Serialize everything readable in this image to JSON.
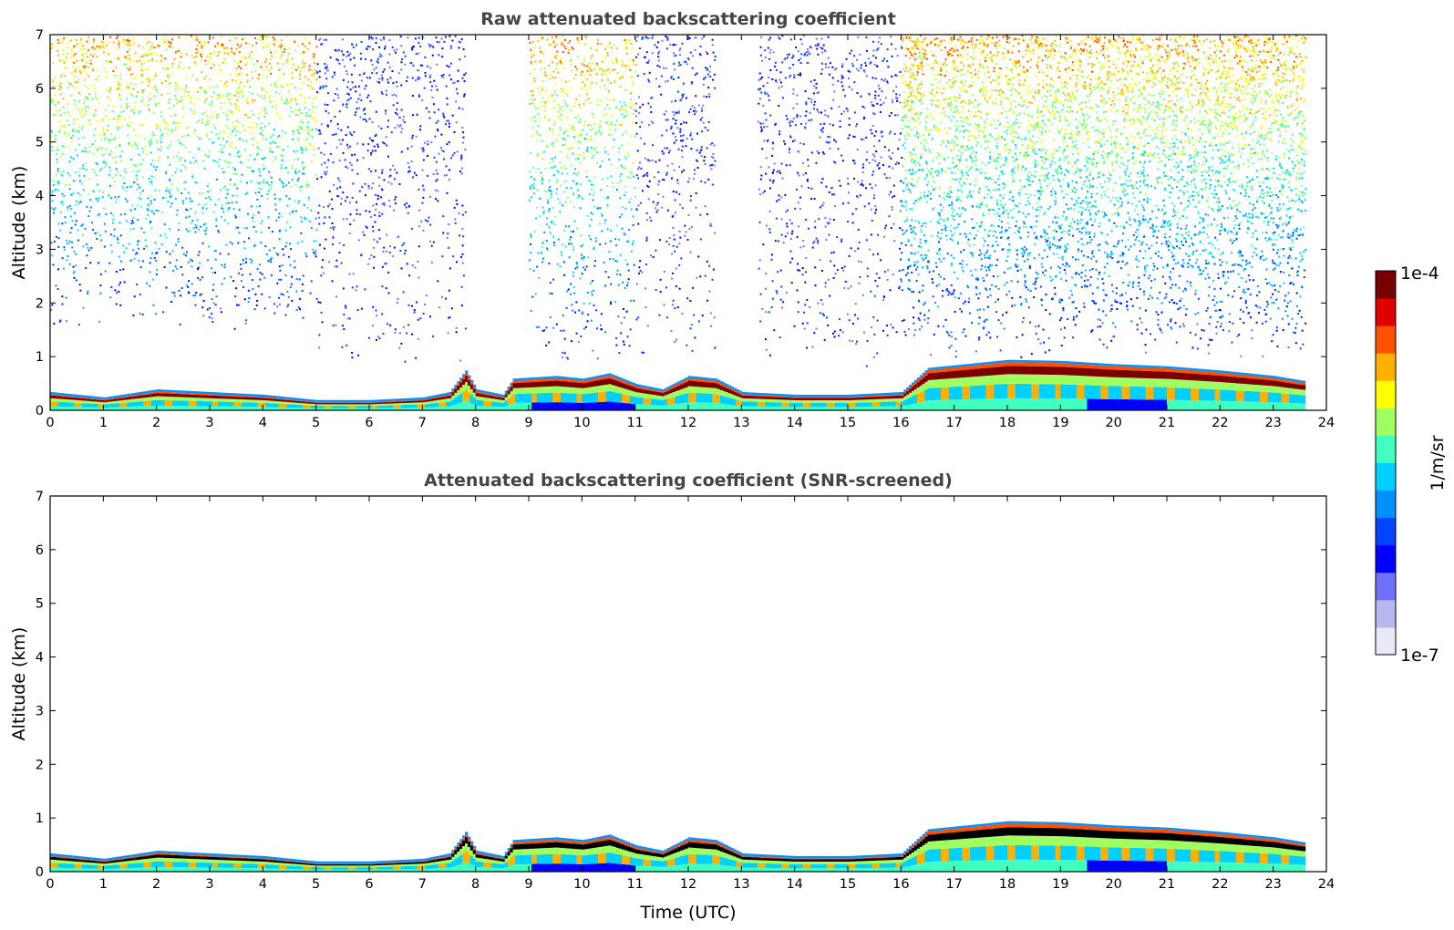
{
  "chart_data": [
    {
      "type": "heatmap",
      "title": "Raw attenuated backscattering coefficient",
      "xlabel": "",
      "ylabel": "Altitude (km)",
      "xlim": [
        0,
        24
      ],
      "ylim": [
        0,
        7
      ],
      "xticks": [
        "0",
        "1",
        "2",
        "3",
        "4",
        "5",
        "6",
        "7",
        "8",
        "9",
        "10",
        "11",
        "12",
        "13",
        "14",
        "15",
        "16",
        "17",
        "18",
        "19",
        "20",
        "21",
        "22",
        "23",
        "24"
      ],
      "yticks": [
        "0",
        "1",
        "2",
        "3",
        "4",
        "5",
        "6",
        "7"
      ],
      "data_end_hour": 23.6,
      "boundary_layer_top_km": [
        [
          0,
          0.3
        ],
        [
          1,
          0.2
        ],
        [
          2,
          0.35
        ],
        [
          3,
          0.3
        ],
        [
          4,
          0.25
        ],
        [
          5,
          0.15
        ],
        [
          6,
          0.15
        ],
        [
          7,
          0.2
        ],
        [
          7.5,
          0.3
        ],
        [
          7.8,
          0.7
        ],
        [
          8,
          0.35
        ],
        [
          8.5,
          0.25
        ],
        [
          8.7,
          0.55
        ],
        [
          9.5,
          0.6
        ],
        [
          10,
          0.55
        ],
        [
          10.5,
          0.65
        ],
        [
          11,
          0.45
        ],
        [
          11.5,
          0.35
        ],
        [
          12,
          0.6
        ],
        [
          12.5,
          0.55
        ],
        [
          13,
          0.3
        ],
        [
          14,
          0.25
        ],
        [
          15,
          0.25
        ],
        [
          16,
          0.3
        ],
        [
          16.5,
          0.75
        ],
        [
          17,
          0.8
        ],
        [
          18,
          0.9
        ],
        [
          19,
          0.88
        ],
        [
          20,
          0.82
        ],
        [
          21,
          0.78
        ],
        [
          22,
          0.7
        ],
        [
          23,
          0.6
        ],
        [
          23.6,
          0.5
        ]
      ],
      "noise_regions": [
        {
          "x": [
            0,
            5
          ],
          "ymin_km": 1.5,
          "level": "moderate"
        },
        {
          "x": [
            5,
            7.8
          ],
          "ymin_km": 0.8,
          "level": "low-streaks"
        },
        {
          "x": [
            9,
            11
          ],
          "ymin_km": 0.9,
          "level": "moderate"
        },
        {
          "x": [
            11,
            12.5
          ],
          "ymin_km": 0.8,
          "level": "low-streaks"
        },
        {
          "x": [
            13.3,
            16
          ],
          "ymin_km": 0.8,
          "level": "low-streaks"
        },
        {
          "x": [
            16,
            23.6
          ],
          "ymin_km": 1.0,
          "level": "high"
        }
      ]
    },
    {
      "type": "heatmap",
      "title": "Attenuated backscattering coefficient (SNR-screened)",
      "xlabel": "Time (UTC)",
      "ylabel": "Altitude (km)",
      "xlim": [
        0,
        24
      ],
      "ylim": [
        0,
        7
      ],
      "xticks": [
        "0",
        "1",
        "2",
        "3",
        "4",
        "5",
        "6",
        "7",
        "8",
        "9",
        "10",
        "11",
        "12",
        "13",
        "14",
        "15",
        "16",
        "17",
        "18",
        "19",
        "20",
        "21",
        "22",
        "23",
        "24"
      ],
      "yticks": [
        "0",
        "1",
        "2",
        "3",
        "4",
        "5",
        "6",
        "7"
      ],
      "data_end_hour": 23.6,
      "boundary_layer_top_km": "same as raw panel"
    }
  ],
  "colorbar": {
    "label": "1/m/sr",
    "max_label": "1e-4",
    "min_label": "1e-7",
    "scale": "log",
    "colors": [
      "#e8e8f8",
      "#b8b8f0",
      "#7070ff",
      "#0000ff",
      "#0044ff",
      "#0090ff",
      "#00d0ff",
      "#40ffc0",
      "#a0ff60",
      "#ffff00",
      "#ffb000",
      "#ff5000",
      "#e00000",
      "#7a0000"
    ]
  }
}
